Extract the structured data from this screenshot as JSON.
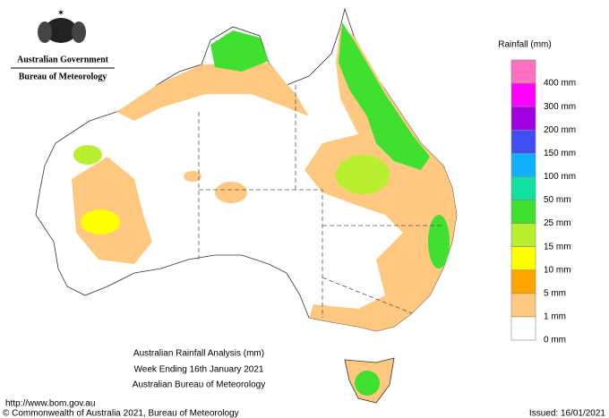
{
  "header": {
    "title": "Australian Government",
    "subtitle": "Bureau of Meteorology"
  },
  "legend": {
    "title": "Rainfall (mm)",
    "items": [
      {
        "label": "400 mm",
        "color": "#ff70c0"
      },
      {
        "label": "300 mm",
        "color": "#ff00ff"
      },
      {
        "label": "200 mm",
        "color": "#a000e0"
      },
      {
        "label": "150 mm",
        "color": "#4050f0"
      },
      {
        "label": "100 mm",
        "color": "#10b0ff"
      },
      {
        "label": "50 mm",
        "color": "#10e0a0"
      },
      {
        "label": "25 mm",
        "color": "#40e030"
      },
      {
        "label": "15 mm",
        "color": "#b8f030"
      },
      {
        "label": "10 mm",
        "color": "#ffff00"
      },
      {
        "label": "5 mm",
        "color": "#ffa500"
      },
      {
        "label": "1 mm",
        "color": "#ffc880"
      },
      {
        "label": "0 mm",
        "color": "#ffffff"
      }
    ]
  },
  "map": {
    "title": "Australian Rainfall Analysis (mm)",
    "subtitle": "Week Ending 16th January 2021",
    "source": "Australian Bureau of Meteorology"
  },
  "footer": {
    "url": "http://www.bom.gov.au",
    "copyright": "© Commonwealth of Australia 2021, Bureau of Meteorology",
    "issued": "Issued: 16/01/2021"
  }
}
